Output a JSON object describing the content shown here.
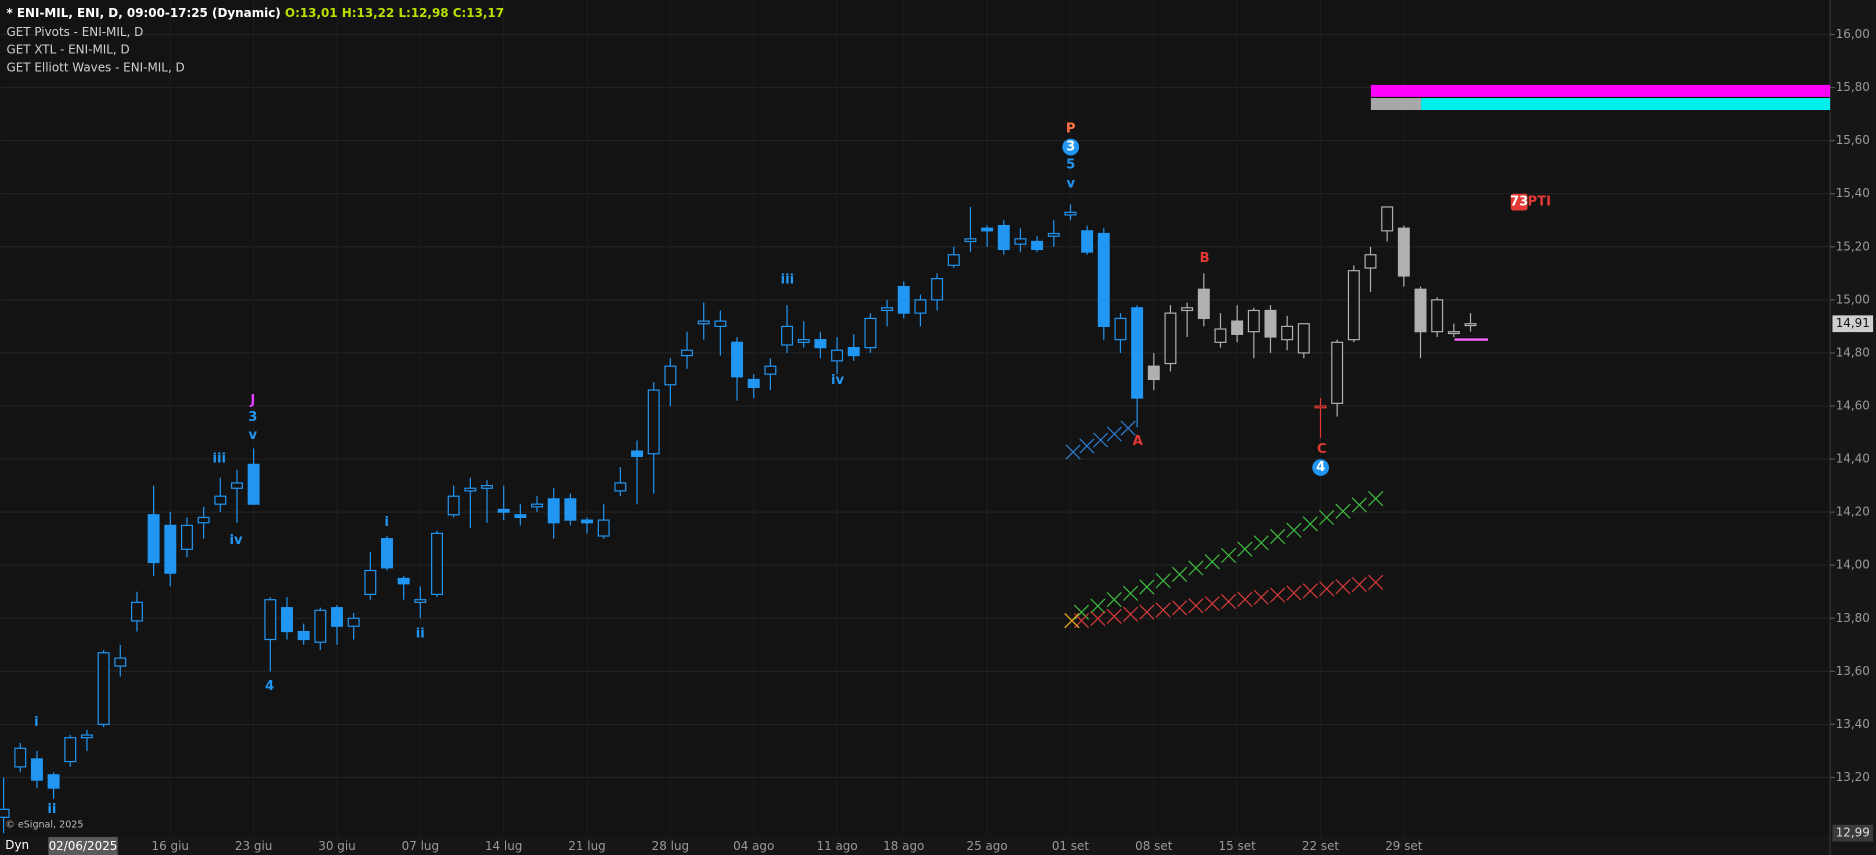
{
  "header": {
    "title": "* ENI-MIL, ENI, D, 09:00-17:25 (Dynamic)",
    "ohlc": "O:13,01 H:13,22 L:12,98 C:13,17",
    "studies": [
      "GET Pivots - ENI-MIL, D",
      "GET XTL - ENI-MIL, D",
      "GET Elliott Waves - ENI-MIL, D"
    ]
  },
  "footer": {
    "copyright": "© eSignal, 2025",
    "mode": "Dyn"
  },
  "chart_data": {
    "type": "candlestick",
    "categories": [
      "02/06/2025",
      null,
      null,
      null,
      null,
      null,
      null,
      null,
      null,
      null,
      "16 giu",
      null,
      null,
      null,
      null,
      "23 giu",
      null,
      null,
      null,
      null,
      "30 giu",
      null,
      null,
      null,
      null,
      "07 lug",
      null,
      null,
      null,
      null,
      "14 lug",
      null,
      null,
      null,
      null,
      "21 lug",
      null,
      null,
      null,
      null,
      "28 lug",
      null,
      null,
      null,
      null,
      "04 ago",
      null,
      null,
      null,
      null,
      "11 ago",
      null,
      null,
      null,
      "18 ago",
      null,
      null,
      null,
      null,
      "25 ago",
      null,
      null,
      null,
      null,
      "01 set",
      null,
      null,
      null,
      null,
      "08 set",
      null,
      null,
      null,
      null,
      "15 set",
      null,
      null,
      null,
      null,
      "22 set",
      null,
      null,
      null,
      null,
      "29 set",
      null,
      null,
      null,
      null
    ],
    "open": [
      13.05,
      13.24,
      13.27,
      13.21,
      13.26,
      13.35,
      13.4,
      13.62,
      13.79,
      14.19,
      14.15,
      14.06,
      14.16,
      14.23,
      14.29,
      14.38,
      13.72,
      13.84,
      13.75,
      13.71,
      13.84,
      13.77,
      13.89,
      14.1,
      13.95,
      13.86,
      13.89,
      14.19,
      14.28,
      14.29,
      14.21,
      14.19,
      14.22,
      14.25,
      14.25,
      14.17,
      14.11,
      14.28,
      14.43,
      14.42,
      14.68,
      14.79,
      14.91,
      14.9,
      14.84,
      14.7,
      14.72,
      14.83,
      14.84,
      14.85,
      14.77,
      14.82,
      14.82,
      14.96,
      15.05,
      14.95,
      15.0,
      15.13,
      15.22,
      15.27,
      15.28,
      15.21,
      15.22,
      15.24,
      15.32,
      15.26,
      15.25,
      14.85,
      14.97,
      14.75,
      14.76,
      14.96,
      15.04,
      14.84,
      14.92,
      14.88,
      14.96,
      14.85,
      14.8,
      14.6,
      14.61,
      14.85,
      15.12,
      15.26,
      15.27,
      15.04,
      14.88,
      14.88,
      14.91
    ],
    "high": [
      13.2,
      13.33,
      13.3,
      13.22,
      13.36,
      13.38,
      13.68,
      13.7,
      13.9,
      14.3,
      14.2,
      14.18,
      14.22,
      14.33,
      14.36,
      14.44,
      13.88,
      13.88,
      13.78,
      13.84,
      13.85,
      13.82,
      14.05,
      14.11,
      13.96,
      13.92,
      14.13,
      14.3,
      14.33,
      14.32,
      14.3,
      14.23,
      14.26,
      14.29,
      14.27,
      14.18,
      14.23,
      14.37,
      14.47,
      14.69,
      14.78,
      14.88,
      14.99,
      14.96,
      14.86,
      14.72,
      14.78,
      14.98,
      14.92,
      14.88,
      14.86,
      14.87,
      14.95,
      15.0,
      15.07,
      15.02,
      15.1,
      15.2,
      15.35,
      15.28,
      15.3,
      15.27,
      15.24,
      15.3,
      15.36,
      15.28,
      15.27,
      14.95,
      14.98,
      14.8,
      14.98,
      14.99,
      15.1,
      14.95,
      14.98,
      14.97,
      14.98,
      14.94,
      14.91,
      14.63,
      14.85,
      15.13,
      15.2,
      15.35,
      15.28,
      15.05,
      15.01,
      14.91,
      14.95
    ],
    "low": [
      12.99,
      13.22,
      13.16,
      13.12,
      13.24,
      13.3,
      13.39,
      13.58,
      13.75,
      13.96,
      13.92,
      14.03,
      14.1,
      14.2,
      14.16,
      14.23,
      13.6,
      13.72,
      13.7,
      13.68,
      13.7,
      13.72,
      13.87,
      13.98,
      13.87,
      13.8,
      13.88,
      14.18,
      14.14,
      14.16,
      14.17,
      14.15,
      14.2,
      14.1,
      14.15,
      14.12,
      14.1,
      14.26,
      14.23,
      14.27,
      14.6,
      14.74,
      14.85,
      14.79,
      14.62,
      14.63,
      14.66,
      14.8,
      14.82,
      14.78,
      14.72,
      14.77,
      14.8,
      14.9,
      14.93,
      14.9,
      14.96,
      15.12,
      15.18,
      15.2,
      15.17,
      15.18,
      15.18,
      15.2,
      15.3,
      15.17,
      14.85,
      14.8,
      14.52,
      14.66,
      14.73,
      14.86,
      14.9,
      14.82,
      14.84,
      14.78,
      14.8,
      14.81,
      14.78,
      14.48,
      14.56,
      14.84,
      15.03,
      15.22,
      15.05,
      14.78,
      14.86,
      14.86,
      14.88
    ],
    "close": [
      13.08,
      13.31,
      13.19,
      13.16,
      13.35,
      13.36,
      13.67,
      13.65,
      13.86,
      14.01,
      13.97,
      14.15,
      14.18,
      14.26,
      14.31,
      14.23,
      13.87,
      13.75,
      13.72,
      13.83,
      13.77,
      13.8,
      13.98,
      13.99,
      13.93,
      13.87,
      14.12,
      14.26,
      14.29,
      14.3,
      14.2,
      14.18,
      14.23,
      14.16,
      14.17,
      14.16,
      14.17,
      14.31,
      14.41,
      14.66,
      14.75,
      14.81,
      14.92,
      14.92,
      14.71,
      14.67,
      14.75,
      14.9,
      14.85,
      14.82,
      14.81,
      14.79,
      14.93,
      14.97,
      14.95,
      15.0,
      15.08,
      15.17,
      15.23,
      15.26,
      15.19,
      15.23,
      15.19,
      15.25,
      15.33,
      15.18,
      14.9,
      14.93,
      14.63,
      14.7,
      14.95,
      14.97,
      14.93,
      14.89,
      14.87,
      14.96,
      14.86,
      14.9,
      14.91,
      14.6,
      14.84,
      15.11,
      15.17,
      15.35,
      15.09,
      14.88,
      15.0,
      14.88,
      14.91
    ],
    "colors": [
      "#2196f3",
      "#2196f3",
      "#2196f3",
      "#2196f3",
      "#2196f3",
      "#2196f3",
      "#2196f3",
      "#2196f3",
      "#2196f3",
      "#2196f3",
      "#2196f3",
      "#2196f3",
      "#2196f3",
      "#2196f3",
      "#2196f3",
      "#2196f3",
      "#2196f3",
      "#2196f3",
      "#2196f3",
      "#2196f3",
      "#2196f3",
      "#2196f3",
      "#2196f3",
      "#2196f3",
      "#2196f3",
      "#2196f3",
      "#2196f3",
      "#2196f3",
      "#2196f3",
      "#2196f3",
      "#2196f3",
      "#2196f3",
      "#2196f3",
      "#2196f3",
      "#2196f3",
      "#2196f3",
      "#2196f3",
      "#2196f3",
      "#2196f3",
      "#2196f3",
      "#2196f3",
      "#2196f3",
      "#2196f3",
      "#2196f3",
      "#2196f3",
      "#2196f3",
      "#2196f3",
      "#2196f3",
      "#2196f3",
      "#2196f3",
      "#2196f3",
      "#2196f3",
      "#2196f3",
      "#2196f3",
      "#2196f3",
      "#2196f3",
      "#2196f3",
      "#2196f3",
      "#2196f3",
      "#2196f3",
      "#2196f3",
      "#2196f3",
      "#2196f3",
      "#2196f3",
      "#2196f3",
      "#2196f3",
      "#2196f3",
      "#2196f3",
      "#2196f3",
      "#b0b0b0",
      "#b0b0b0",
      "#b0b0b0",
      "#b0b0b0",
      "#b0b0b0",
      "#b0b0b0",
      "#b0b0b0",
      "#b0b0b0",
      "#b0b0b0",
      "#b0b0b0",
      "#e53935",
      "#b0b0b0",
      "#b0b0b0",
      "#b0b0b0",
      "#b0b0b0",
      "#b0b0b0",
      "#b0b0b0",
      "#b0b0b0",
      "#b0b0b0",
      "#b0b0b0"
    ],
    "ylim": [
      12.98,
      16.13
    ],
    "yticks": [
      {
        "value": 13.2,
        "label": "13,20"
      },
      {
        "value": 13.4,
        "label": "13,40"
      },
      {
        "value": 13.6,
        "label": "13,60"
      },
      {
        "value": 13.8,
        "label": "13,80"
      },
      {
        "value": 14.0,
        "label": "14,00"
      },
      {
        "value": 14.2,
        "label": "14,20"
      },
      {
        "value": 14.4,
        "label": "14,40"
      },
      {
        "value": 14.6,
        "label": "14,60"
      },
      {
        "value": 14.8,
        "label": "14,80"
      },
      {
        "value": 15.0,
        "label": "15,00"
      },
      {
        "value": 15.2,
        "label": "15,20"
      },
      {
        "value": 15.4,
        "label": "15,40"
      },
      {
        "value": 15.6,
        "label": "15,60"
      },
      {
        "value": 15.8,
        "label": "15,80"
      },
      {
        "value": 16.0,
        "label": "16,00"
      }
    ],
    "grid": true,
    "last_price": {
      "value": 14.91,
      "label": "14,91"
    },
    "low_marker": {
      "value": 12.99,
      "label": "12,99"
    },
    "annotations": [
      {
        "text": "i",
        "color": "#2196f3"
      },
      {
        "text": "ii",
        "color": "#2196f3"
      },
      {
        "text": "iii",
        "color": "#2196f3"
      },
      {
        "text": "iv",
        "color": "#2196f3"
      },
      {
        "text": "J",
        "color": "#e040fb"
      },
      {
        "text": "3",
        "color": "#2196f3"
      },
      {
        "text": "v",
        "color": "#2196f3"
      },
      {
        "text": "4",
        "color": "#2196f3"
      },
      {
        "text": "i",
        "color": "#2196f3"
      },
      {
        "text": "ii",
        "color": "#2196f3"
      },
      {
        "text": "iii",
        "color": "#2196f3"
      },
      {
        "text": "iv",
        "color": "#2196f3"
      },
      {
        "text": "P",
        "color": "#ff7043"
      },
      {
        "text": "3",
        "color": "#2196f3",
        "circled": true
      },
      {
        "text": "5",
        "color": "#2196f3"
      },
      {
        "text": "v",
        "color": "#2196f3"
      },
      {
        "text": "A",
        "color": "#e53935"
      },
      {
        "text": "B",
        "color": "#e53935"
      },
      {
        "text": "C",
        "color": "#e53935"
      },
      {
        "text": "4",
        "color": "#2196f3",
        "circled": true
      },
      {
        "text": "73",
        "color": "#e53935",
        "boxed": true
      },
      {
        "text": "PTI",
        "color": "#e53935"
      }
    ]
  }
}
